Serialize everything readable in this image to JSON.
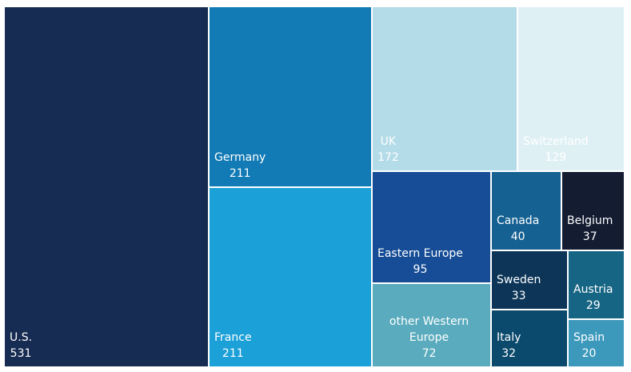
{
  "chart_data": {
    "type": "treemap",
    "items": [
      {
        "label": "U.S.",
        "value": 531,
        "color": "#172c52",
        "text_color": "#ffffff"
      },
      {
        "label": "Germany",
        "value": 211,
        "color": "#127ab4",
        "text_color": "#ffffff"
      },
      {
        "label": "France",
        "value": 211,
        "color": "#1ca0d8",
        "text_color": "#ffffff"
      },
      {
        "label": "UK",
        "value": 172,
        "color": "#b3dbe8",
        "text_color": "#ffffff"
      },
      {
        "label": "Switzerland",
        "value": 129,
        "color": "#dff0f4",
        "text_color": "#ffffff"
      },
      {
        "label": "Eastern Europe",
        "value": 95,
        "color": "#164d96",
        "text_color": "#ffffff"
      },
      {
        "label": "other Western Europe",
        "value": 72,
        "color": "#5aabbd",
        "text_color": "#ffffff"
      },
      {
        "label": "Canada",
        "value": 40,
        "color": "#156192",
        "text_color": "#ffffff"
      },
      {
        "label": "Belgium",
        "value": 37,
        "color": "#141c32",
        "text_color": "#ffffff"
      },
      {
        "label": "Sweden",
        "value": 33,
        "color": "#0c3558",
        "text_color": "#ffffff"
      },
      {
        "label": "Austria",
        "value": 29,
        "color": "#176584",
        "text_color": "#ffffff"
      },
      {
        "label": "Italy",
        "value": 32,
        "color": "#0b4a6c",
        "text_color": "#ffffff"
      },
      {
        "label": "Spain",
        "value": 20,
        "color": "#3d99bc",
        "text_color": "#ffffff"
      }
    ]
  }
}
